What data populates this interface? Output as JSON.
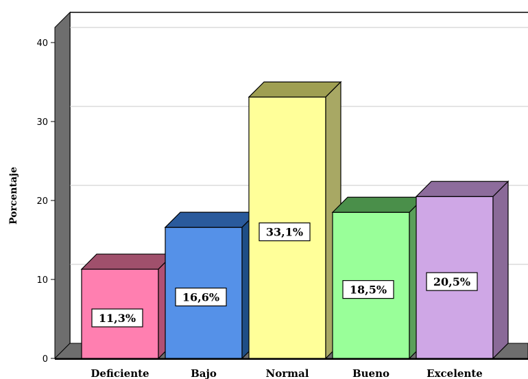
{
  "chart_data": {
    "type": "bar",
    "categories": [
      "Deficiente",
      "Bajo",
      "Normal",
      "Bueno",
      "Excelente"
    ],
    "values": [
      11.3,
      16.6,
      33.1,
      18.5,
      20.5
    ],
    "data_labels": [
      "11,3%",
      "16,6%",
      "33,1%",
      "18,5%",
      "20,5%"
    ],
    "colors": {
      "front": [
        "#ff7fb0",
        "#5591e8",
        "#ffff99",
        "#99ff99",
        "#cfa7e6"
      ],
      "top": [
        "#a0506c",
        "#2a5a9c",
        "#9f9f52",
        "#4a8f4a",
        "#8d6c9c"
      ],
      "side": [
        "#b05074",
        "#1f4e86",
        "#a8a864",
        "#5aa05a",
        "#8a6a98"
      ]
    },
    "title": "",
    "xlabel": "",
    "ylabel": "Porcentaje",
    "ylim": [
      0,
      40
    ],
    "yticks": [
      0,
      10,
      20,
      30,
      40
    ],
    "grid": true,
    "three_d": true
  }
}
